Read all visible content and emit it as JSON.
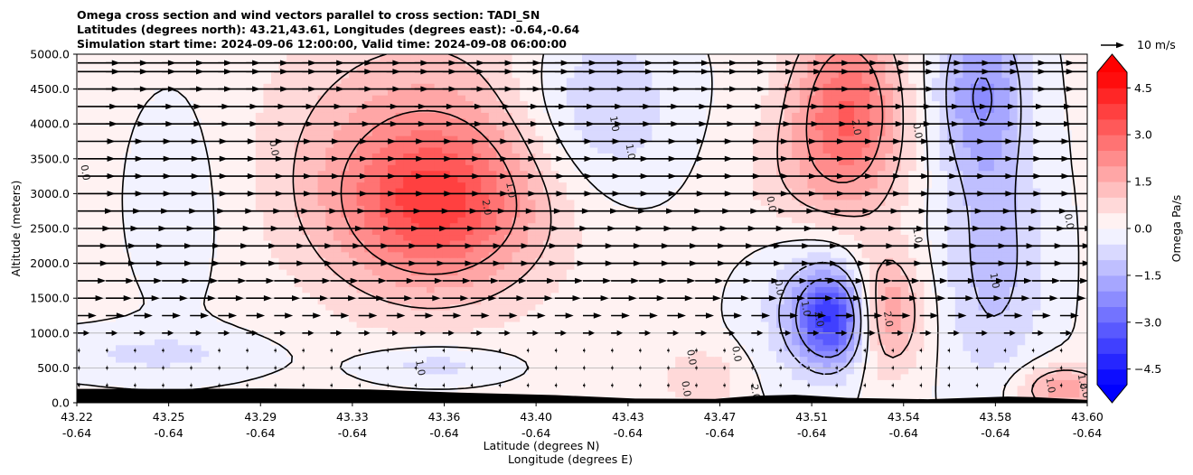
{
  "chart_data": {
    "type": "heatmap",
    "title_lines": [
      "Omega cross section and wind vectors parallel to cross section: TADI_SN",
      "Latitudes (degrees north): 43.21,43.61, Longitudes (degrees east): -0.64,-0.64",
      "Simulation start time: 2024-09-06 12:00:00, Valid time: 2024-09-08 06:00:00"
    ],
    "xlabel": "Latitude (degrees N)",
    "xlabel2": "Longitude (degrees E)",
    "ylabel": "Altitude (meters)",
    "xlim": [
      43.22,
      43.6
    ],
    "ylim": [
      0,
      5000
    ],
    "x_ticks": [
      {
        "lat": "43.22",
        "lon": "-0.64",
        "pos": 0
      },
      {
        "lat": "43.25",
        "lon": "-0.64",
        "pos": 0.0909
      },
      {
        "lat": "43.29",
        "lon": "-0.64",
        "pos": 0.1818
      },
      {
        "lat": "43.33",
        "lon": "-0.64",
        "pos": 0.2727
      },
      {
        "lat": "43.36",
        "lon": "-0.64",
        "pos": 0.3636
      },
      {
        "lat": "43.40",
        "lon": "-0.64",
        "pos": 0.4545
      },
      {
        "lat": "43.43",
        "lon": "-0.64",
        "pos": 0.5455
      },
      {
        "lat": "43.47",
        "lon": "-0.64",
        "pos": 0.6364
      },
      {
        "lat": "43.51",
        "lon": "-0.64",
        "pos": 0.7273
      },
      {
        "lat": "43.54",
        "lon": "-0.64",
        "pos": 0.8182
      },
      {
        "lat": "43.58",
        "lon": "-0.64",
        "pos": 0.9091
      },
      {
        "lat": "43.60",
        "lon": "-0.64",
        "pos": 1.0
      }
    ],
    "y_ticks": [
      {
        "label": "0.0",
        "value": 0
      },
      {
        "label": "500.0",
        "value": 500
      },
      {
        "label": "1000.0",
        "value": 1000
      },
      {
        "label": "1500.0",
        "value": 1500
      },
      {
        "label": "2000.0",
        "value": 2000
      },
      {
        "label": "2500.0",
        "value": 2500
      },
      {
        "label": "3000.0",
        "value": 3000
      },
      {
        "label": "3500.0",
        "value": 3500
      },
      {
        "label": "4000.0",
        "value": 4000
      },
      {
        "label": "4500.0",
        "value": 4500
      },
      {
        "label": "5000.0",
        "value": 5000
      }
    ],
    "grid": "horizontal",
    "colorbar": {
      "label": "Omega Pa/s",
      "min": -5.0,
      "max": 5.0,
      "extend": "both",
      "cmap": "bwr",
      "low_color": "#0000ff",
      "high_color": "#ff0000",
      "ticks": [
        {
          "label": "4.5",
          "value": 4.5
        },
        {
          "label": "3.0",
          "value": 3.0
        },
        {
          "label": "1.5",
          "value": 1.5
        },
        {
          "label": "0.0",
          "value": 0.0
        },
        {
          "label": "−1.5",
          "value": -1.5
        },
        {
          "label": "−3.0",
          "value": -3.0
        },
        {
          "label": "−4.5",
          "value": -4.5
        }
      ]
    },
    "omega_features": [
      {
        "x": 43.355,
        "z": 2800,
        "peak": 2.5,
        "sx": 0.025,
        "sz": 800
      },
      {
        "x": 43.35,
        "z": 3600,
        "peak": 1.5,
        "sx": 0.04,
        "sz": 1400
      },
      {
        "x": 43.415,
        "z": 4200,
        "peak": -1.3,
        "sx": 0.022,
        "sz": 900
      },
      {
        "x": 43.505,
        "z": 1200,
        "peak": -3.5,
        "sx": 0.01,
        "sz": 450
      },
      {
        "x": 43.5,
        "z": 1700,
        "peak": -1.4,
        "sx": 0.018,
        "sz": 900
      },
      {
        "x": 43.523,
        "z": 1300,
        "peak": 2.5,
        "sx": 0.01,
        "sz": 600
      },
      {
        "x": 43.51,
        "z": 4300,
        "peak": 2.6,
        "sx": 0.014,
        "sz": 900
      },
      {
        "x": 43.5,
        "z": 3000,
        "peak": 1.2,
        "sx": 0.02,
        "sz": 900
      },
      {
        "x": 43.56,
        "z": 4500,
        "peak": -2.0,
        "sx": 0.012,
        "sz": 900
      },
      {
        "x": 43.565,
        "z": 2000,
        "peak": -1.3,
        "sx": 0.014,
        "sz": 1300
      },
      {
        "x": 43.26,
        "z": 3000,
        "peak": -0.4,
        "sx": 0.015,
        "sz": 1200
      },
      {
        "x": 43.25,
        "z": 700,
        "peak": -0.7,
        "sx": 0.03,
        "sz": 250
      },
      {
        "x": 43.355,
        "z": 550,
        "peak": -0.9,
        "sx": 0.02,
        "sz": 200
      },
      {
        "x": 43.59,
        "z": 200,
        "peak": 1.8,
        "sx": 0.012,
        "sz": 250
      },
      {
        "x": 43.455,
        "z": 350,
        "peak": 0.9,
        "sx": 0.01,
        "sz": 300
      }
    ],
    "contour_labels": [
      {
        "text": "0.0",
        "x": 43.223,
        "z": 3300
      },
      {
        "text": "0.0",
        "x": 43.294,
        "z": 3650
      },
      {
        "text": "1.0",
        "x": 43.383,
        "z": 3050
      },
      {
        "text": "2.0",
        "x": 43.374,
        "z": 2800
      },
      {
        "text": "1.0",
        "x": 43.422,
        "z": 4000
      },
      {
        "text": "1.0",
        "x": 43.428,
        "z": 3600
      },
      {
        "text": "0.0",
        "x": 43.481,
        "z": 2850
      },
      {
        "text": "0.0",
        "x": 43.484,
        "z": 1650
      },
      {
        "text": "1.0",
        "x": 43.494,
        "z": 1350
      },
      {
        "text": "2.0",
        "x": 43.499,
        "z": 1200
      },
      {
        "text": "2.0",
        "x": 43.513,
        "z": 3950
      },
      {
        "text": "0.0",
        "x": 43.536,
        "z": 3900
      },
      {
        "text": "1.0",
        "x": 43.536,
        "z": 2400
      },
      {
        "text": "2.0",
        "x": 43.525,
        "z": 1200
      },
      {
        "text": "1.0",
        "x": 43.565,
        "z": 1750
      },
      {
        "text": "0.0",
        "x": 43.593,
        "z": 2600
      },
      {
        "text": "0.0",
        "x": 43.468,
        "z": 700
      },
      {
        "text": "0.0",
        "x": 43.451,
        "z": 650
      },
      {
        "text": "0.0",
        "x": 43.449,
        "z": 200
      },
      {
        "text": "1.0",
        "x": 43.349,
        "z": 500
      },
      {
        "text": "1.0",
        "x": 43.586,
        "z": 250
      },
      {
        "text": "1.0",
        "x": 43.598,
        "z": 300
      },
      {
        "text": "2.0",
        "x": 43.599,
        "z": 180
      },
      {
        "text": "2.0",
        "x": 43.475,
        "z": 150
      }
    ],
    "terrain": [
      [
        43.22,
        200
      ],
      [
        43.26,
        200
      ],
      [
        43.29,
        205
      ],
      [
        43.33,
        190
      ],
      [
        43.36,
        150
      ],
      [
        43.4,
        110
      ],
      [
        43.43,
        60
      ],
      [
        43.46,
        55
      ],
      [
        43.475,
        100
      ],
      [
        43.49,
        115
      ],
      [
        43.51,
        70
      ],
      [
        43.54,
        50
      ],
      [
        43.57,
        90
      ],
      [
        43.58,
        80
      ],
      [
        43.6,
        40
      ]
    ],
    "wind_rows": [
      {
        "z": 4875,
        "speed": 18
      },
      {
        "z": 4750,
        "speed": 18
      },
      {
        "z": 4500,
        "speed": 18
      },
      {
        "z": 4250,
        "speed": 17
      },
      {
        "z": 4000,
        "speed": 17
      },
      {
        "z": 3750,
        "speed": 16
      },
      {
        "z": 3500,
        "speed": 16
      },
      {
        "z": 3250,
        "speed": 16
      },
      {
        "z": 3000,
        "speed": 16
      },
      {
        "z": 2750,
        "speed": 15
      },
      {
        "z": 2500,
        "speed": 14
      },
      {
        "z": 2250,
        "speed": 13
      },
      {
        "z": 2000,
        "speed": 13
      },
      {
        "z": 1750,
        "speed": 12
      },
      {
        "z": 1500,
        "speed": 11
      },
      {
        "z": 1250,
        "speed": 8
      },
      {
        "z": 1000,
        "speed": 5
      },
      {
        "z": 750,
        "speed": 1
      },
      {
        "z": 500,
        "speed": 1
      },
      {
        "z": 250,
        "speed": 1
      }
    ],
    "wind_columns": 36,
    "wind_reference": {
      "label": "10 m/s",
      "speed": 10
    }
  }
}
